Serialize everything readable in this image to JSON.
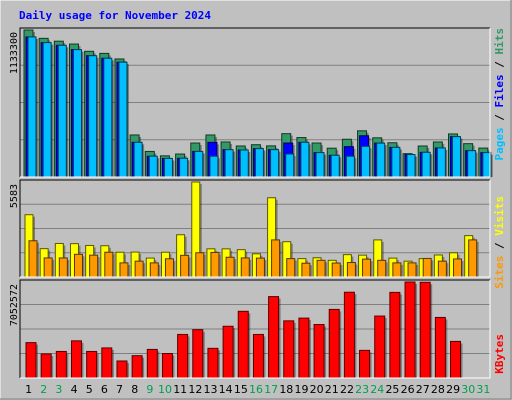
{
  "chart_data": [
    {
      "type": "bar",
      "title": "Daily usage for November 2024",
      "categories": [
        "1",
        "2",
        "3",
        "4",
        "5",
        "6",
        "7",
        "8",
        "9",
        "10",
        "11",
        "12",
        "13",
        "14",
        "15",
        "16",
        "17",
        "18",
        "19",
        "20",
        "21",
        "22",
        "23",
        "24",
        "25",
        "26",
        "27",
        "28",
        "29",
        "30",
        "31"
      ],
      "weekend_days": [
        "2",
        "3",
        "9",
        "10",
        "16",
        "17",
        "23",
        "24",
        "30",
        "31"
      ],
      "ymax_label": "1133300",
      "ylim": [
        0,
        1133300
      ],
      "grid": true,
      "series": [
        {
          "name": "Hits",
          "color": "#339966",
          "values": [
            1133300,
            1069000,
            1047000,
            1025000,
            969000,
            953000,
            910000,
            324000,
            197000,
            163000,
            177000,
            262000,
            324000,
            270000,
            239000,
            249000,
            240000,
            334000,
            304000,
            262000,
            222000,
            291000,
            356000,
            302000,
            264000,
            180000,
            239000,
            270000,
            332000,
            257000,
            223000
          ]
        },
        {
          "name": "Files",
          "color": "#0000ff",
          "values": [
            1080000,
            1036000,
            1015000,
            982000,
            935000,
            915000,
            885000,
            267000,
            160000,
            143000,
            144000,
            197000,
            267000,
            211000,
            208000,
            219000,
            211000,
            262000,
            267000,
            188000,
            167000,
            234000,
            318000,
            261000,
            228000,
            173000,
            190000,
            224000,
            311000,
            203000,
            188000
          ]
        },
        {
          "name": "Pages",
          "color": "#00bfff",
          "values": [
            1080000,
            1036000,
            1015000,
            982000,
            935000,
            915000,
            885000,
            267000,
            160000,
            143000,
            144000,
            197000,
            160000,
            211000,
            208000,
            219000,
            211000,
            177000,
            267000,
            188000,
            167000,
            160000,
            236000,
            261000,
            228000,
            173000,
            190000,
            224000,
            311000,
            203000,
            188000
          ]
        }
      ]
    },
    {
      "type": "bar",
      "ymax_label": "5583",
      "ylim": [
        0,
        5583
      ],
      "grid": true,
      "series": [
        {
          "name": "Visits",
          "color": "#ffff00",
          "values": [
            3660,
            1666,
            1970,
            1960,
            1853,
            1837,
            1455,
            1465,
            1112,
            1455,
            2483,
            5583,
            1656,
            1655,
            1606,
            1363,
            4657,
            2074,
            1081,
            1131,
            980,
            1313,
            1283,
            2180,
            1111,
            930,
            1080,
            1293,
            1424,
            2432,
            0
          ]
        },
        {
          "name": "Sites",
          "color": "#ff9900",
          "values": [
            2130,
            1120,
            1120,
            1333,
            1283,
            1455,
            830,
            930,
            830,
            1070,
            1273,
            1424,
            1444,
            1160,
            1121,
            1110,
            2180,
            1080,
            810,
            980,
            820,
            850,
            1050,
            980,
            830,
            830,
            1091,
            930,
            1060,
            2180,
            0
          ]
        }
      ]
    },
    {
      "type": "bar",
      "ymax_label": "7052572",
      "ylim": [
        0,
        7052572
      ],
      "grid": true,
      "series": [
        {
          "name": "KBytes",
          "color": "#ff0000",
          "values": [
            2600000,
            1770000,
            1950000,
            2730000,
            1950000,
            2210000,
            1250000,
            1640000,
            2100000,
            1800000,
            3200000,
            3550000,
            2180000,
            3800000,
            4900000,
            3200000,
            5980000,
            4200000,
            4400000,
            3930000,
            5040000,
            6300000,
            2030000,
            4550000,
            6290000,
            7052572,
            7030000,
            4450000,
            2690000,
            0,
            0
          ]
        }
      ]
    }
  ]
}
